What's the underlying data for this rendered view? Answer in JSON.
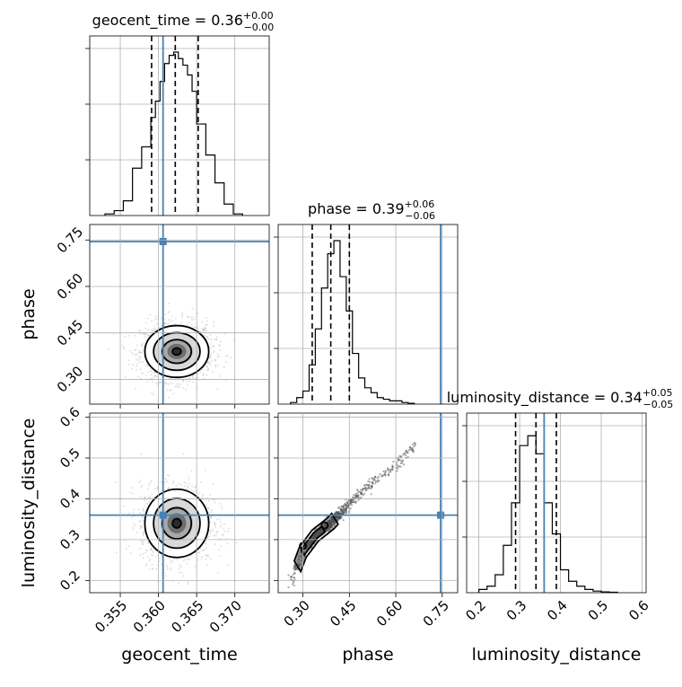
{
  "truth_color": "#4682b4",
  "chart_data": {
    "type": "corner",
    "parameters": [
      "geocent_time",
      "phase",
      "luminosity_distance"
    ],
    "axis_labels": [
      "geocent_time",
      "phase",
      "luminosity_distance"
    ],
    "ranges": {
      "geocent_time": [
        0.351,
        0.3745
      ],
      "phase": [
        0.22,
        0.8
      ],
      "luminosity_distance": [
        0.17,
        0.61
      ]
    },
    "ticks": {
      "geocent_time": [
        {
          "v": 0.355,
          "label": "0.355"
        },
        {
          "v": 0.36,
          "label": "0.360"
        },
        {
          "v": 0.365,
          "label": "0.365"
        },
        {
          "v": 0.37,
          "label": "0.370"
        }
      ],
      "phase": [
        {
          "v": 0.3,
          "label": "0.30"
        },
        {
          "v": 0.45,
          "label": "0.45"
        },
        {
          "v": 0.6,
          "label": "0.60"
        },
        {
          "v": 0.75,
          "label": "0.75"
        }
      ],
      "luminosity_distance": [
        {
          "v": 0.2,
          "label": "0.2"
        },
        {
          "v": 0.3,
          "label": "0.3"
        },
        {
          "v": 0.4,
          "label": "0.4"
        },
        {
          "v": 0.5,
          "label": "0.5"
        },
        {
          "v": 0.6,
          "label": "0.6"
        }
      ]
    },
    "truths": {
      "geocent_time": 0.3606,
      "phase": 0.745,
      "luminosity_distance": 0.36
    },
    "titles": [
      {
        "name": "geocent_time",
        "median": "0.36",
        "plus": "+0.00",
        "minus": "−0.00"
      },
      {
        "name": "phase",
        "median": "0.39",
        "plus": "+0.06",
        "minus": "−0.06"
      },
      {
        "name": "luminosity_distance",
        "median": "0.34",
        "plus": "+0.05",
        "minus": "−0.05"
      }
    ],
    "quantiles": {
      "geocent_time": [
        0.3591,
        0.3622,
        0.3652
      ],
      "phase": [
        0.33,
        0.39,
        0.45
      ],
      "luminosity_distance": [
        0.29,
        0.34,
        0.39
      ]
    },
    "histograms": {
      "geocent_time": {
        "edges": [
          0.353,
          0.3542,
          0.3554,
          0.3566,
          0.3578,
          0.359,
          0.3596,
          0.3602,
          0.3608,
          0.3614,
          0.362,
          0.3626,
          0.3632,
          0.3638,
          0.3644,
          0.365,
          0.3662,
          0.3674,
          0.3686,
          0.3698,
          0.371
        ],
        "counts": [
          0.01,
          0.03,
          0.09,
          0.29,
          0.42,
          0.6,
          0.7,
          0.82,
          0.93,
          0.98,
          1.0,
          0.96,
          0.92,
          0.86,
          0.76,
          0.56,
          0.37,
          0.2,
          0.07,
          0.01
        ]
      },
      "phase": {
        "edges": [
          0.26,
          0.28,
          0.3,
          0.32,
          0.34,
          0.36,
          0.38,
          0.4,
          0.42,
          0.44,
          0.46,
          0.48,
          0.5,
          0.52,
          0.54,
          0.56,
          0.58,
          0.6,
          0.62,
          0.64,
          0.66
        ],
        "counts": [
          0.01,
          0.04,
          0.08,
          0.24,
          0.46,
          0.71,
          0.92,
          1.0,
          0.78,
          0.57,
          0.31,
          0.16,
          0.1,
          0.07,
          0.04,
          0.03,
          0.02,
          0.02,
          0.01,
          0.005
        ]
      },
      "luminosity_distance": {
        "edges": [
          0.2,
          0.22,
          0.24,
          0.26,
          0.28,
          0.3,
          0.32,
          0.34,
          0.36,
          0.38,
          0.4,
          0.42,
          0.44,
          0.46,
          0.48,
          0.5,
          0.52,
          0.54
        ],
        "counts": [
          0.02,
          0.04,
          0.11,
          0.29,
          0.55,
          0.9,
          0.96,
          0.85,
          0.55,
          0.36,
          0.14,
          0.07,
          0.04,
          0.02,
          0.01,
          0.005,
          0.003
        ]
      }
    },
    "density_2d": {
      "geocent_time_vs_phase": {
        "cx": 0.3624,
        "cy": 0.39,
        "sx": 0.0019,
        "sy": 0.038
      },
      "geocent_time_vs_luminosity_distance": {
        "cx": 0.3624,
        "cy": 0.34,
        "sx": 0.0019,
        "sy": 0.038
      },
      "phase_vs_luminosity_distance": {
        "ridge": [
          [
            0.26,
            0.19
          ],
          [
            0.3,
            0.27
          ],
          [
            0.34,
            0.31
          ],
          [
            0.39,
            0.34
          ],
          [
            0.45,
            0.39
          ],
          [
            0.52,
            0.435
          ],
          [
            0.6,
            0.48
          ],
          [
            0.66,
            0.53
          ]
        ]
      }
    },
    "grid": true
  }
}
